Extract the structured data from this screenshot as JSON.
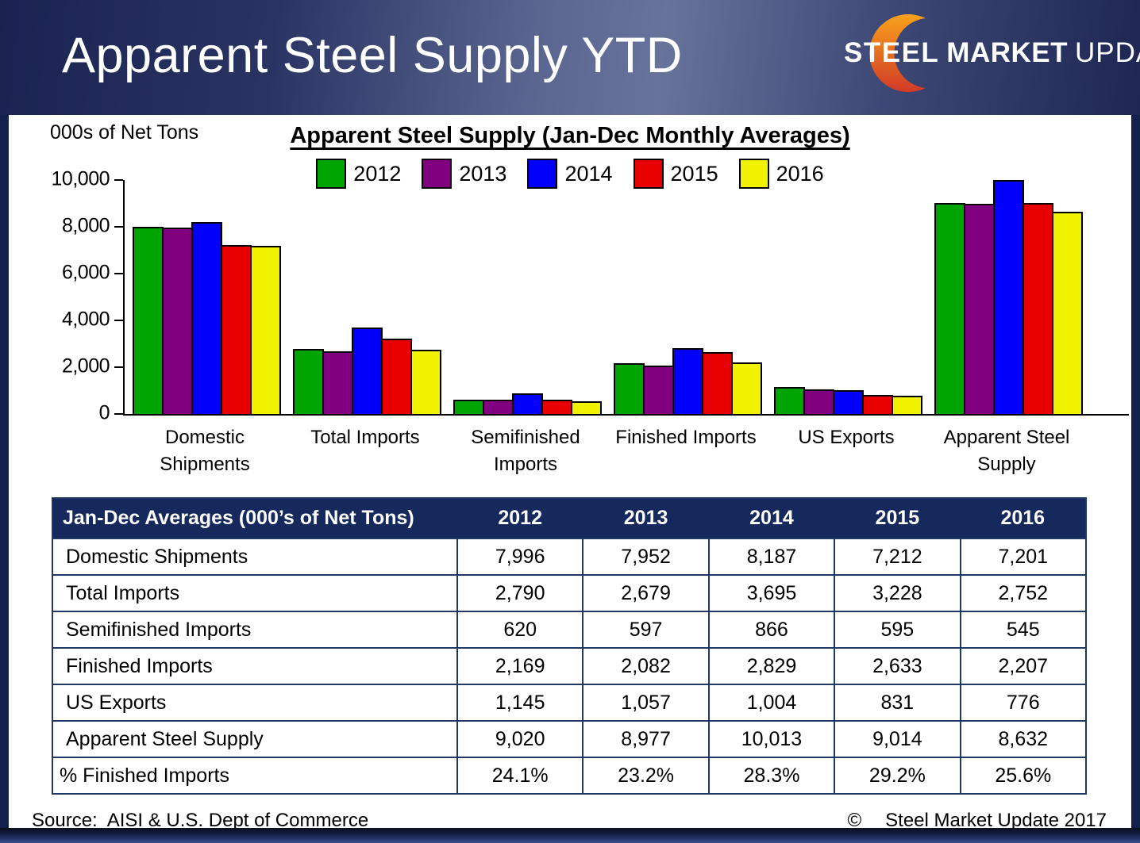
{
  "slide": {
    "title": "Apparent Steel Supply YTD"
  },
  "logo": {
    "steel": "STEEL",
    "market": "MARKET",
    "update": "UPDATE"
  },
  "chart": {
    "units_label": "000s of Net Tons",
    "title": "Apparent Steel Supply (Jan-Dec Monthly Averages)"
  },
  "chart_data": {
    "type": "bar",
    "title": "Apparent Steel Supply (Jan-Dec Monthly Averages)",
    "ylabel": "000s of Net Tons",
    "ylim": [
      0,
      10000
    ],
    "ytick_interval": 2000,
    "ytick_labels": [
      "10,000",
      "8,000",
      "6,000",
      "4,000",
      "2,000",
      "0"
    ],
    "grid": false,
    "legend_position": "top",
    "categories": [
      "Domestic Shipments",
      "Total Imports",
      "Semifinished Imports",
      "Finished Imports",
      "US Exports",
      "Apparent Steel Supply"
    ],
    "series": [
      {
        "name": "2012",
        "color": "#00A400",
        "values": [
          7996,
          2790,
          620,
          2169,
          1145,
          9020
        ]
      },
      {
        "name": "2013",
        "color": "#800080",
        "values": [
          7952,
          2679,
          597,
          2082,
          1057,
          8977
        ]
      },
      {
        "name": "2014",
        "color": "#0101FB",
        "values": [
          8187,
          3695,
          866,
          2829,
          1004,
          10013
        ]
      },
      {
        "name": "2015",
        "color": "#E80000",
        "values": [
          7212,
          3228,
          595,
          2633,
          831,
          9014
        ]
      },
      {
        "name": "2016",
        "color": "#F1F200",
        "values": [
          7201,
          2752,
          545,
          2207,
          776,
          8632
        ]
      }
    ]
  },
  "table": {
    "header": [
      "Jan-Dec Averages (000’s of Net Tons)",
      "2012",
      "2013",
      "2014",
      "2015",
      "2016"
    ],
    "rows": [
      {
        "label": "Domestic Shipments",
        "values": [
          "7,996",
          "7,952",
          "8,187",
          "7,212",
          "7,201"
        ]
      },
      {
        "label": "Total Imports",
        "values": [
          "2,790",
          "2,679",
          "3,695",
          "3,228",
          "2,752"
        ]
      },
      {
        "label": "Semifinished Imports",
        "values": [
          "620",
          "597",
          "866",
          "595",
          "545"
        ]
      },
      {
        "label": "Finished Imports",
        "values": [
          "2,169",
          "2,082",
          "2,829",
          "2,633",
          "2,207"
        ]
      },
      {
        "label": "US Exports",
        "values": [
          "1,145",
          "1,057",
          "1,004",
          "831",
          "776"
        ]
      },
      {
        "label": "Apparent Steel Supply",
        "values": [
          "9,020",
          "8,977",
          "10,013",
          "9,014",
          "8,632"
        ]
      },
      {
        "label": "% Finished Imports",
        "values": [
          "24.1%",
          "23.2%",
          "28.3%",
          "29.2%",
          "25.6%"
        ]
      }
    ]
  },
  "footer": {
    "source": "Source:  AISI & U.S. Dept of Commerce",
    "copyright_symbol": "©",
    "copyright_text": "Steel Market Update 2017"
  },
  "colors": {
    "table_header_bg": "#16295C",
    "table_border": "#1F3864",
    "slide_navy": "#14214C",
    "logo_orange_top": "#F9A21B",
    "logo_orange_bottom": "#D23A28"
  }
}
